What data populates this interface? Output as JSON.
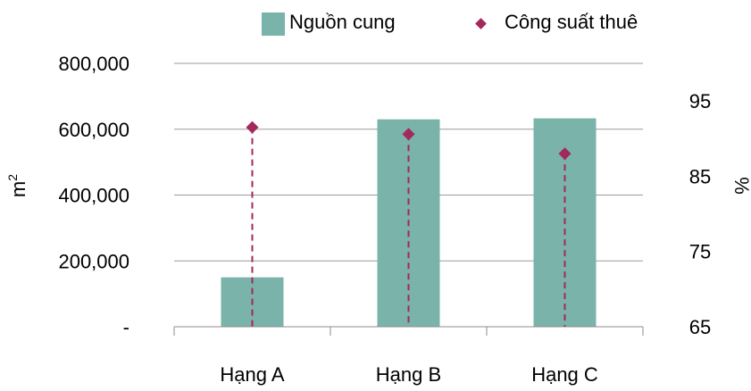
{
  "chart_data": {
    "type": "bar",
    "categories": [
      "Hạng A",
      "Hạng B",
      "Hạng C"
    ],
    "series": [
      {
        "name": "Nguồn cung",
        "kind": "bar",
        "axis": "left",
        "color": "#7AB3A9",
        "values": [
          150000,
          630000,
          633000
        ]
      },
      {
        "name": "Công suất thuê",
        "kind": "point",
        "axis": "right",
        "color": "#A3285C",
        "dropline": "dashed",
        "values": [
          91.5,
          90.6,
          88
        ]
      }
    ],
    "y_left": {
      "label": "m",
      "label_superscript": "2",
      "ylim": [
        0,
        800000
      ],
      "ticks": [
        0,
        200000,
        400000,
        600000,
        800000
      ],
      "tick_labels": [
        "-",
        "200,000",
        "400,000",
        "600,000",
        "800,000"
      ]
    },
    "y_right": {
      "label": "%",
      "ylim": [
        65,
        100
      ],
      "ticks": [
        65,
        75,
        85,
        95
      ],
      "tick_labels": [
        "65",
        "75",
        "85",
        "95"
      ]
    },
    "grid": true,
    "legend": {
      "position": "top-right"
    }
  }
}
